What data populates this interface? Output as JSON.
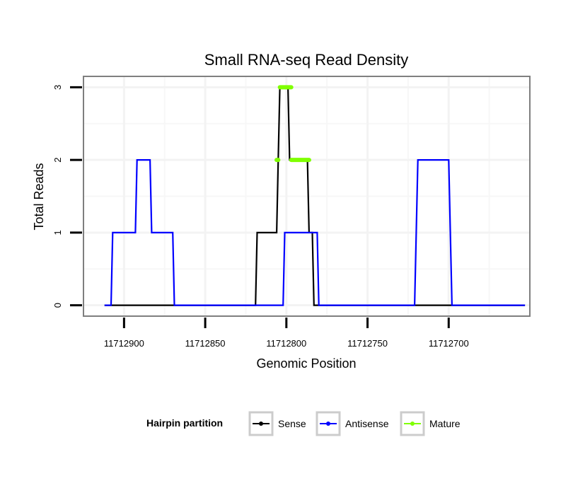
{
  "chart_data": {
    "type": "line",
    "title": "Small RNA-seq Read Density",
    "xlabel": "Genomic Position",
    "ylabel": "Total Reads",
    "x_reversed": true,
    "xlim": [
      11712925,
      11712650
    ],
    "ylim": [
      -0.15,
      3.15
    ],
    "x_ticks": [
      11712900,
      11712850,
      11712800,
      11712750,
      11712700
    ],
    "x_tick_labels": [
      "11712900",
      "11712850",
      "11712800",
      "11712750",
      "11712700"
    ],
    "y_ticks": [
      0,
      1,
      2,
      3
    ],
    "y_tick_labels": [
      "0",
      "1",
      "2",
      "3"
    ],
    "grid": true,
    "legend": {
      "title": "Hairpin partition",
      "position": "bottom",
      "entries": [
        {
          "name": "Sense",
          "color": "#000000"
        },
        {
          "name": "Antisense",
          "color": "#0000ff"
        },
        {
          "name": "Mature",
          "color": "#7fff00"
        }
      ]
    },
    "series": [
      {
        "name": "Sense",
        "color": "#000000",
        "points": [
          [
            11712912,
            0
          ],
          [
            11712819,
            0
          ],
          [
            11712818,
            1
          ],
          [
            11712806,
            1
          ],
          [
            11712805,
            2
          ],
          [
            11712804,
            3
          ],
          [
            11712799,
            3
          ],
          [
            11712798,
            2
          ],
          [
            11712787,
            2
          ],
          [
            11712786,
            1
          ],
          [
            11712784,
            1
          ],
          [
            11712783,
            0
          ],
          [
            11712653,
            0
          ]
        ]
      },
      {
        "name": "Antisense",
        "color": "#0000ff",
        "points": [
          [
            11712912,
            0
          ],
          [
            11712908,
            0
          ],
          [
            11712907,
            1
          ],
          [
            11712893,
            1
          ],
          [
            11712892,
            2
          ],
          [
            11712884,
            2
          ],
          [
            11712883,
            1
          ],
          [
            11712870,
            1
          ],
          [
            11712869,
            0
          ],
          [
            11712802,
            0
          ],
          [
            11712801,
            1
          ],
          [
            11712781,
            1
          ],
          [
            11712780,
            0
          ],
          [
            11712721,
            0
          ],
          [
            11712719,
            2
          ],
          [
            11712700,
            2
          ],
          [
            11712698,
            0
          ],
          [
            11712653,
            0
          ]
        ]
      },
      {
        "name": "Mature",
        "color": "#7fff00",
        "segments": [
          {
            "y": 3,
            "x_from": 11712804,
            "x_to": 11712797
          },
          {
            "y": 2,
            "x_from": 11712806,
            "x_to": 11712805
          },
          {
            "y": 2,
            "x_from": 11712797,
            "x_to": 11712786
          }
        ]
      }
    ]
  }
}
